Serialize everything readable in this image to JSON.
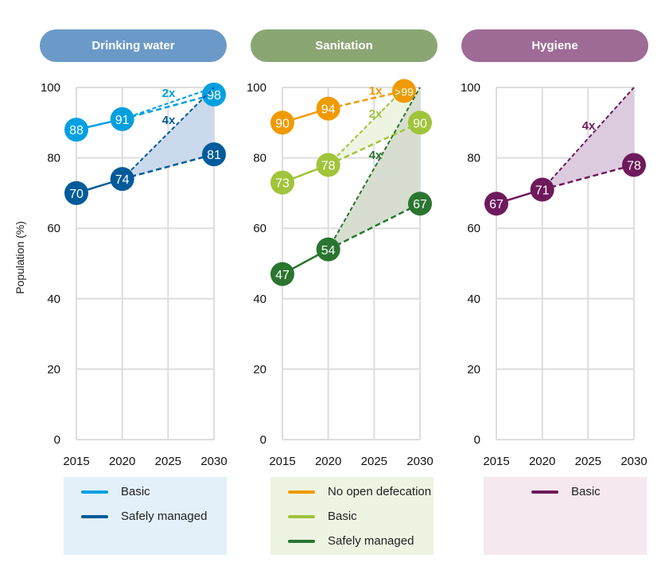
{
  "y_axis_label": "Population (%)",
  "chart_data": [
    {
      "type": "line",
      "title": "Drinking water",
      "title_color": "#6b9ac8",
      "legend_bg": "#e3f0fa",
      "fill": "#cbd9ec",
      "x_ticks": [
        2015,
        2020,
        2025,
        2030
      ],
      "y_ticks": [
        0,
        20,
        40,
        60,
        80,
        100
      ],
      "ylim": [
        0,
        100
      ],
      "grid": true,
      "series": [
        {
          "name": "Basic",
          "color": "#00a0e0",
          "points": [
            [
              2015,
              88
            ],
            [
              2020,
              91
            ],
            [
              2030,
              98
            ]
          ],
          "accelerated": {
            "label": "2x",
            "target": [
              2030,
              100
            ]
          }
        },
        {
          "name": "Safely managed",
          "color": "#005b9a",
          "points": [
            [
              2015,
              70
            ],
            [
              2020,
              74
            ],
            [
              2030,
              81
            ]
          ],
          "accelerated": {
            "label": "4x",
            "target": [
              2030,
              100
            ]
          }
        }
      ]
    },
    {
      "type": "line",
      "title": "Sanitation",
      "title_color": "#8aa673",
      "legend_bg": "#eef4e2",
      "fill": "#d7decf",
      "x_ticks": [
        2015,
        2020,
        2025,
        2030
      ],
      "y_ticks": [
        0,
        20,
        40,
        60,
        80,
        100
      ],
      "ylim": [
        0,
        100
      ],
      "grid": true,
      "series": [
        {
          "name": "No open defecation",
          "color": "#f09a00",
          "points": [
            [
              2015,
              90
            ],
            [
              2020,
              94
            ],
            [
              2030,
              99
            ]
          ],
          "point_labels": [
            "90",
            "94",
            ">99"
          ],
          "accelerated": {
            "label": "1x"
          }
        },
        {
          "name": "Basic",
          "color": "#a0c43a",
          "points": [
            [
              2015,
              73
            ],
            [
              2020,
              78
            ],
            [
              2030,
              90
            ]
          ],
          "accelerated": {
            "label": "2x",
            "target": [
              2030,
              100
            ]
          }
        },
        {
          "name": "Safely managed",
          "color": "#2a7530",
          "points": [
            [
              2015,
              47
            ],
            [
              2020,
              54
            ],
            [
              2030,
              67
            ]
          ],
          "accelerated": {
            "label": "4x",
            "target": [
              2030,
              100
            ]
          }
        }
      ]
    },
    {
      "type": "line",
      "title": "Hygiene",
      "title_color": "#9e6b97",
      "legend_bg": "#f5e8ef",
      "fill": "#dccbdf",
      "x_ticks": [
        2015,
        2020,
        2025,
        2030
      ],
      "y_ticks": [
        0,
        20,
        40,
        60,
        80,
        100
      ],
      "ylim": [
        0,
        100
      ],
      "grid": true,
      "series": [
        {
          "name": "Basic",
          "color": "#6e1a5c",
          "points": [
            [
              2015,
              67
            ],
            [
              2020,
              71
            ],
            [
              2030,
              78
            ]
          ],
          "accelerated": {
            "label": "4x",
            "target": [
              2030,
              100
            ]
          }
        }
      ]
    }
  ]
}
